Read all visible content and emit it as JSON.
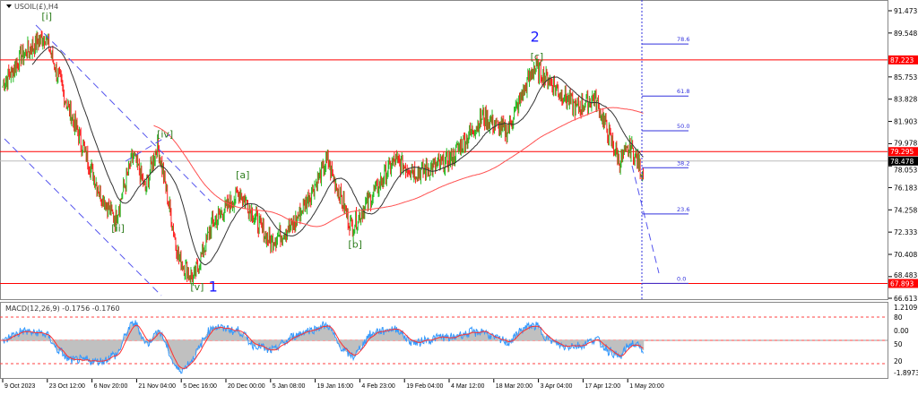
{
  "header": {
    "symbol_label": "USOIL(£),H4"
  },
  "chart_data": {
    "type": "candlestick",
    "price_axis_ticks": [
      "91.473",
      "89.548",
      "85.753",
      "83.828",
      "81.903",
      "79.978",
      "78.053",
      "76.183",
      "74.258",
      "72.333",
      "70.408",
      "68.483",
      "66.613"
    ],
    "ylim": [
      66.613,
      91.473
    ],
    "time_axis_ticks": [
      "9 Oct 2023",
      "23 Oct 12:00",
      "6 Nov 20:00",
      "21 Nov 04:00",
      "5 Dec 16:00",
      "20 Dec 00:00",
      "5 Jan 08:00",
      "19 Jan 16:00",
      "4 Feb 23:00",
      "19 Feb 04:00",
      "4 Mar 12:00",
      "18 Mar 20:00",
      "3 Apr 04:00",
      "17 Apr 12:00",
      "1 May 20:00"
    ],
    "close_path": [
      {
        "date": "2023-10-09",
        "price": 85.0
      },
      {
        "date": "2023-10-15",
        "price": 87.5
      },
      {
        "date": "2023-10-23",
        "price": 89.3
      },
      {
        "date": "2023-10-30",
        "price": 83.5
      },
      {
        "date": "2023-11-10",
        "price": 75.8
      },
      {
        "date": "2023-11-15",
        "price": 73.4
      },
      {
        "date": "2023-11-21",
        "price": 79.0
      },
      {
        "date": "2023-11-25",
        "price": 76.0
      },
      {
        "date": "2023-11-29",
        "price": 80.0
      },
      {
        "date": "2023-12-06",
        "price": 70.0
      },
      {
        "date": "2023-12-11",
        "price": 68.3
      },
      {
        "date": "2023-12-17",
        "price": 73.0
      },
      {
        "date": "2023-12-26",
        "price": 75.8
      },
      {
        "date": "2024-01-05",
        "price": 71.5
      },
      {
        "date": "2024-01-13",
        "price": 73.0
      },
      {
        "date": "2024-01-24",
        "price": 78.5
      },
      {
        "date": "2024-02-01",
        "price": 72.7
      },
      {
        "date": "2024-02-15",
        "price": 78.5
      },
      {
        "date": "2024-02-23",
        "price": 77.5
      },
      {
        "date": "2024-03-04",
        "price": 78.5
      },
      {
        "date": "2024-03-15",
        "price": 82.3
      },
      {
        "date": "2024-03-23",
        "price": 81.0
      },
      {
        "date": "2024-04-01",
        "price": 86.6
      },
      {
        "date": "2024-04-06",
        "price": 85.5
      },
      {
        "date": "2024-04-15",
        "price": 83.0
      },
      {
        "date": "2024-04-21",
        "price": 84.0
      },
      {
        "date": "2024-04-29",
        "price": 78.5
      },
      {
        "date": "2024-05-03",
        "price": 79.6
      },
      {
        "date": "2024-05-07",
        "price": 77.3
      }
    ],
    "horizontal_lines": [
      {
        "price": 87.223,
        "label": "87.223",
        "color": "#ff0000"
      },
      {
        "price": 79.295,
        "label": "79.295",
        "color": "#ff0000"
      },
      {
        "price": 67.893,
        "label": "67.893",
        "color": "#ff0000"
      }
    ],
    "current_price": {
      "price": 78.478,
      "label": "78.478"
    },
    "fibonacci": [
      {
        "level": "78.6",
        "price": 88.6
      },
      {
        "level": "61.8",
        "price": 84.1
      },
      {
        "level": "50.0",
        "price": 81.1
      },
      {
        "level": "38.2",
        "price": 77.9
      },
      {
        "level": "23.6",
        "price": 73.9
      },
      {
        "level": "0.0",
        "price": 67.9
      }
    ],
    "wave_labels": [
      {
        "text": "[i]",
        "date": "2023-10-23",
        "price": 90.7,
        "color": "#2e7d1e"
      },
      {
        "text": "[ii]",
        "date": "2023-11-15",
        "price": 72.4,
        "color": "#2e7d1e"
      },
      {
        "text": "[iv]",
        "date": "2023-11-30",
        "price": 80.5,
        "color": "#2e7d1e"
      },
      {
        "text": "[v]",
        "date": "2023-12-11",
        "price": 67.3,
        "color": "#2e7d1e"
      },
      {
        "text": "1",
        "date": "2023-12-17",
        "price": 67.2,
        "color": "#1a1aff"
      },
      {
        "text": "[a]",
        "date": "2023-12-26",
        "price": 77.0,
        "color": "#2e7d1e"
      },
      {
        "text": "[b]",
        "date": "2024-02-01",
        "price": 71.0,
        "color": "#2e7d1e"
      },
      {
        "text": "2",
        "date": "2024-04-01",
        "price": 88.8,
        "color": "#1a1aff"
      },
      {
        "text": "[c]",
        "date": "2024-04-01",
        "price": 87.2,
        "color": "#2e7d1e"
      }
    ],
    "colors": {
      "bull": "#22bb22",
      "bear": "#ff2020",
      "ma_fast": "#333333",
      "ma_slow": "#ff5050",
      "trendline": "#5555ee",
      "fib": "#3333dd"
    },
    "macd": {
      "label": "MACD(12,26,9) -0.1756 -0.1760",
      "axis_ticks": [
        "1.2109",
        "80",
        "0.00",
        "50",
        "20",
        "-1.8973"
      ]
    }
  }
}
